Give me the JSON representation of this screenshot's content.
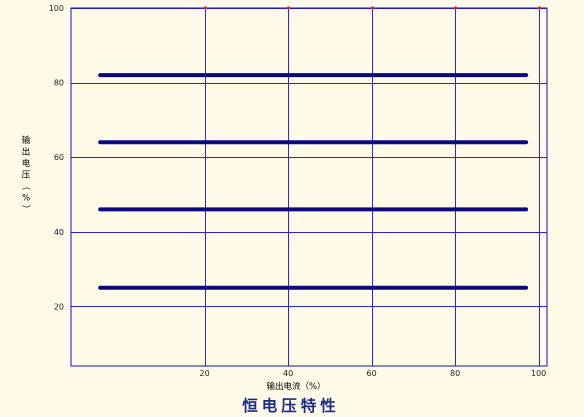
{
  "chart_data": {
    "type": "line",
    "title": "恒电压特性",
    "xlabel": "输出电流（%）",
    "ylabel_chars": [
      "输",
      "出",
      "电",
      "压",
      "（",
      "%",
      "）"
    ],
    "xlim": [
      -12,
      102
    ],
    "ylim": [
      4,
      100
    ],
    "x_ticks": [
      20,
      40,
      60,
      80,
      100
    ],
    "y_ticks": [
      20,
      40,
      60,
      80,
      100
    ],
    "x_tick_labels": [
      "20",
      "40",
      "60",
      "80",
      "100"
    ],
    "y_tick_labels": [
      "20",
      "40",
      "60",
      "80",
      "100"
    ],
    "grid": true,
    "series": [
      {
        "x": [
          -5,
          97
        ],
        "y": [
          82,
          82
        ]
      },
      {
        "x": [
          -5,
          97
        ],
        "y": [
          64,
          64
        ]
      },
      {
        "x": [
          -5,
          97
        ],
        "y": [
          46,
          46
        ]
      },
      {
        "x": [
          -5,
          97
        ],
        "y": [
          25,
          25
        ]
      }
    ],
    "colors": {
      "background": "#fffbe8",
      "plot_border": "#1010c8",
      "grid": "#2828d8",
      "series": "#0a0a7c",
      "top_dots": "#d03020",
      "title": "#1a2a88"
    }
  }
}
